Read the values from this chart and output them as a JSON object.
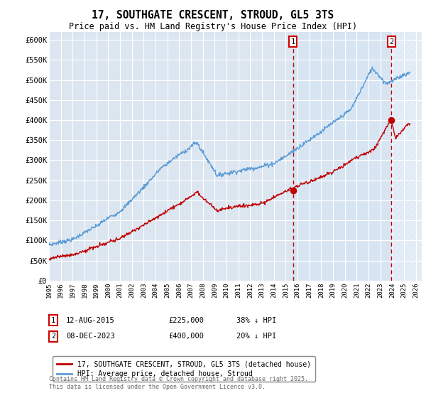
{
  "title": "17, SOUTHGATE CRESCENT, STROUD, GL5 3TS",
  "subtitle": "Price paid vs. HM Land Registry's House Price Index (HPI)",
  "ylim": [
    0,
    620000
  ],
  "yticks": [
    0,
    50000,
    100000,
    150000,
    200000,
    250000,
    300000,
    350000,
    400000,
    450000,
    500000,
    550000,
    600000
  ],
  "ytick_labels": [
    "£0",
    "£50K",
    "£100K",
    "£150K",
    "£200K",
    "£250K",
    "£300K",
    "£350K",
    "£400K",
    "£450K",
    "£500K",
    "£550K",
    "£600K"
  ],
  "xlim_start": 1995.0,
  "xlim_end": 2026.5,
  "hpi_color": "#5b9bd5",
  "price_color": "#c00000",
  "sale1_x": 2015.614,
  "sale1_y": 225000,
  "sale2_x": 2023.936,
  "sale2_y": 400000,
  "sale1_label": "12-AUG-2015",
  "sale1_price": "£225,000",
  "sale1_note": "38% ↓ HPI",
  "sale2_label": "08-DEC-2023",
  "sale2_price": "£400,000",
  "sale2_note": "20% ↓ HPI",
  "legend_line1": "17, SOUTHGATE CRESCENT, STROUD, GL5 3TS (detached house)",
  "legend_line2": "HPI: Average price, detached house, Stroud",
  "footnote": "Contains HM Land Registry data © Crown copyright and database right 2025.\nThis data is licensed under the Open Government Licence v3.0.",
  "bg_color": "#dce6f1",
  "shade_color": "#d0e4f7",
  "hatch_color": "#c8c8c8",
  "grid_color": "#ffffff"
}
